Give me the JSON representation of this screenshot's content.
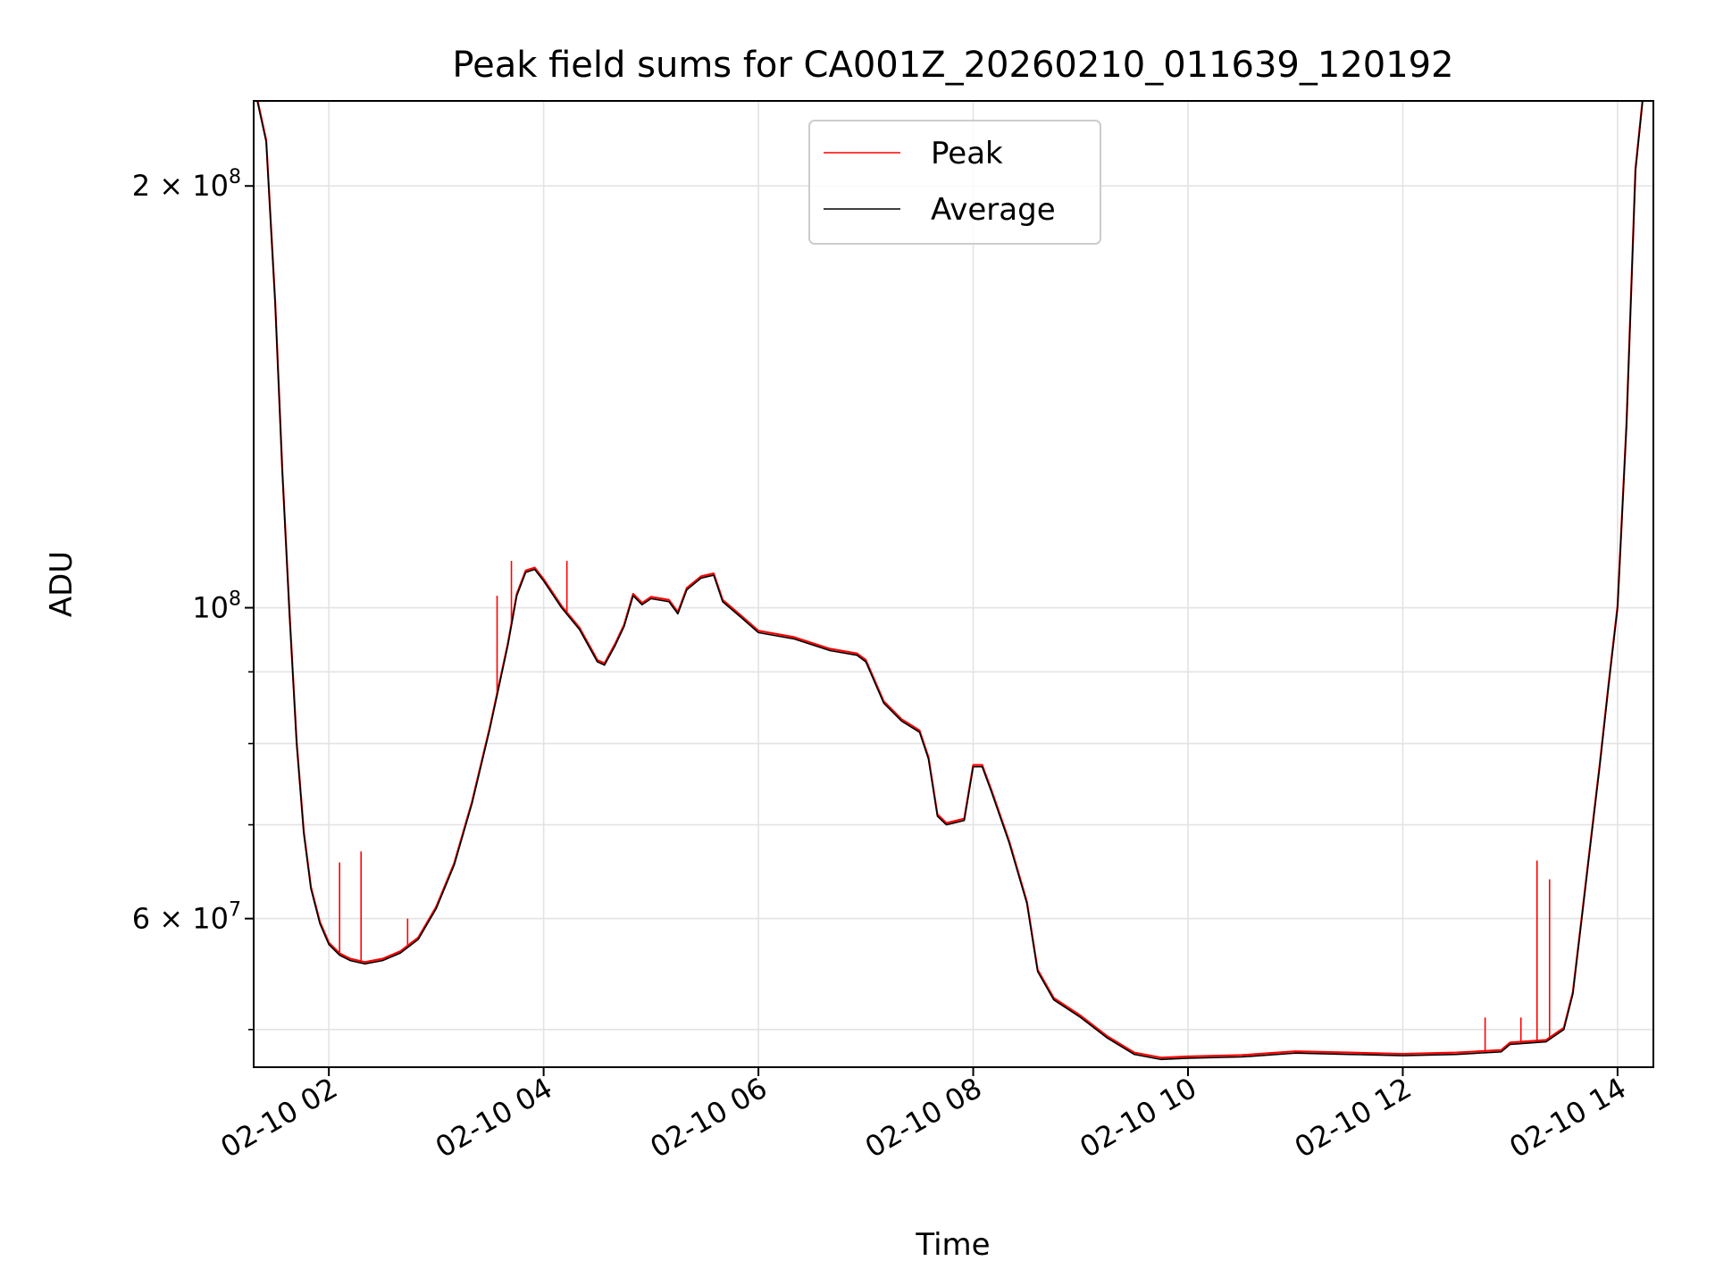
{
  "chart_data": {
    "type": "line",
    "title": "Peak field sums for CA001Z_20260210_011639_120192",
    "xlabel": "Time",
    "ylabel": "ADU",
    "x_scale": "time",
    "y_scale": "log",
    "xlim": [
      "2026-02-10 01:18",
      "2026-02-10 14:20"
    ],
    "ylim": [
      47000000,
      230000000
    ],
    "x_ticks": [
      {
        "t": "2026-02-10 02:00",
        "label": "02-10 02"
      },
      {
        "t": "2026-02-10 04:00",
        "label": "02-10 04"
      },
      {
        "t": "2026-02-10 06:00",
        "label": "02-10 06"
      },
      {
        "t": "2026-02-10 08:00",
        "label": "02-10 08"
      },
      {
        "t": "2026-02-10 10:00",
        "label": "02-10 10"
      },
      {
        "t": "2026-02-10 12:00",
        "label": "02-10 12"
      },
      {
        "t": "2026-02-10 14:00",
        "label": "02-10 14"
      }
    ],
    "y_major_ticks": [
      {
        "value": 200000000,
        "mantissa": "2",
        "base": "10",
        "exp": "8"
      },
      {
        "value": 100000000,
        "mantissa": "",
        "base": "10",
        "exp": "8"
      },
      {
        "value": 60000000,
        "mantissa": "6",
        "base": "10",
        "exp": "7"
      }
    ],
    "y_minor_gridlines": [
      50000000,
      70000000,
      80000000,
      90000000
    ],
    "grid": true,
    "legend_position": "top-center",
    "series": [
      {
        "name": "Peak",
        "color": "#ff0000",
        "spikes": [
          {
            "t": "2026-02-10 02:06",
            "value": 65800000
          },
          {
            "t": "2026-02-10 02:18",
            "value": 67000000
          },
          {
            "t": "2026-02-10 02:44",
            "value": 60000000
          },
          {
            "t": "2026-02-10 03:34",
            "value": 102000000
          },
          {
            "t": "2026-02-10 03:42",
            "value": 108000000
          },
          {
            "t": "2026-02-10 04:13",
            "value": 108000000
          },
          {
            "t": "2026-02-10 12:46",
            "value": 51000000
          },
          {
            "t": "2026-02-10 13:06",
            "value": 51000000
          },
          {
            "t": "2026-02-10 13:15",
            "value": 66000000
          },
          {
            "t": "2026-02-10 13:22",
            "value": 64000000
          }
        ]
      },
      {
        "name": "Average",
        "color": "#000000",
        "points": [
          [
            "2026-02-10 01:20",
            230000000
          ],
          [
            "2026-02-10 01:25",
            215000000
          ],
          [
            "2026-02-10 01:30",
            165000000
          ],
          [
            "2026-02-10 01:34",
            125000000
          ],
          [
            "2026-02-10 01:38",
            99000000
          ],
          [
            "2026-02-10 01:42",
            80000000
          ],
          [
            "2026-02-10 01:46",
            69000000
          ],
          [
            "2026-02-10 01:50",
            63000000
          ],
          [
            "2026-02-10 01:55",
            59500000
          ],
          [
            "2026-02-10 02:00",
            57500000
          ],
          [
            "2026-02-10 02:06",
            56500000
          ],
          [
            "2026-02-10 02:12",
            56000000
          ],
          [
            "2026-02-10 02:20",
            55700000
          ],
          [
            "2026-02-10 02:30",
            56000000
          ],
          [
            "2026-02-10 02:40",
            56700000
          ],
          [
            "2026-02-10 02:50",
            58000000
          ],
          [
            "2026-02-10 03:00",
            61000000
          ],
          [
            "2026-02-10 03:10",
            65500000
          ],
          [
            "2026-02-10 03:20",
            72500000
          ],
          [
            "2026-02-10 03:30",
            82000000
          ],
          [
            "2026-02-10 03:36",
            89000000
          ],
          [
            "2026-02-10 03:40",
            94000000
          ],
          [
            "2026-02-10 03:45",
            102000000
          ],
          [
            "2026-02-10 03:50",
            106000000
          ],
          [
            "2026-02-10 03:55",
            106500000
          ],
          [
            "2026-02-10 04:00",
            104500000
          ],
          [
            "2026-02-10 04:10",
            100000000
          ],
          [
            "2026-02-10 04:20",
            96500000
          ],
          [
            "2026-02-10 04:30",
            91500000
          ],
          [
            "2026-02-10 04:34",
            91000000
          ],
          [
            "2026-02-10 04:40",
            94000000
          ],
          [
            "2026-02-10 04:45",
            97000000
          ],
          [
            "2026-02-10 04:50",
            102000000
          ],
          [
            "2026-02-10 04:55",
            100500000
          ],
          [
            "2026-02-10 05:00",
            101500000
          ],
          [
            "2026-02-10 05:10",
            101000000
          ],
          [
            "2026-02-10 05:15",
            99000000
          ],
          [
            "2026-02-10 05:20",
            103000000
          ],
          [
            "2026-02-10 05:28",
            105000000
          ],
          [
            "2026-02-10 05:35",
            105500000
          ],
          [
            "2026-02-10 05:40",
            101000000
          ],
          [
            "2026-02-10 05:50",
            98500000
          ],
          [
            "2026-02-10 06:00",
            96000000
          ],
          [
            "2026-02-10 06:20",
            95000000
          ],
          [
            "2026-02-10 06:40",
            93200000
          ],
          [
            "2026-02-10 06:55",
            92500000
          ],
          [
            "2026-02-10 07:00",
            91500000
          ],
          [
            "2026-02-10 07:10",
            85500000
          ],
          [
            "2026-02-10 07:20",
            83000000
          ],
          [
            "2026-02-10 07:30",
            81500000
          ],
          [
            "2026-02-10 07:35",
            78000000
          ],
          [
            "2026-02-10 07:40",
            71000000
          ],
          [
            "2026-02-10 07:45",
            70000000
          ],
          [
            "2026-02-10 07:55",
            70500000
          ],
          [
            "2026-02-10 08:00",
            77000000
          ],
          [
            "2026-02-10 08:05",
            77000000
          ],
          [
            "2026-02-10 08:10",
            74000000
          ],
          [
            "2026-02-10 08:20",
            68000000
          ],
          [
            "2026-02-10 08:30",
            61500000
          ],
          [
            "2026-02-10 08:36",
            55000000
          ],
          [
            "2026-02-10 08:45",
            52500000
          ],
          [
            "2026-02-10 09:00",
            51000000
          ],
          [
            "2026-02-10 09:15",
            49300000
          ],
          [
            "2026-02-10 09:30",
            48000000
          ],
          [
            "2026-02-10 09:45",
            47600000
          ],
          [
            "2026-02-10 10:00",
            47700000
          ],
          [
            "2026-02-10 10:30",
            47800000
          ],
          [
            "2026-02-10 11:00",
            48100000
          ],
          [
            "2026-02-10 11:30",
            48000000
          ],
          [
            "2026-02-10 12:00",
            47900000
          ],
          [
            "2026-02-10 12:30",
            48000000
          ],
          [
            "2026-02-10 12:55",
            48200000
          ],
          [
            "2026-02-10 13:00",
            48800000
          ],
          [
            "2026-02-10 13:20",
            49000000
          ],
          [
            "2026-02-10 13:30",
            50000000
          ],
          [
            "2026-02-10 13:35",
            53000000
          ],
          [
            "2026-02-10 13:40",
            60000000
          ],
          [
            "2026-02-10 13:45",
            68000000
          ],
          [
            "2026-02-10 13:50",
            77000000
          ],
          [
            "2026-02-10 13:55",
            88000000
          ],
          [
            "2026-02-10 14:00",
            100000000
          ],
          [
            "2026-02-10 14:05",
            135000000
          ],
          [
            "2026-02-10 14:10",
            205000000
          ],
          [
            "2026-02-10 14:14",
            230000000
          ]
        ]
      }
    ]
  }
}
